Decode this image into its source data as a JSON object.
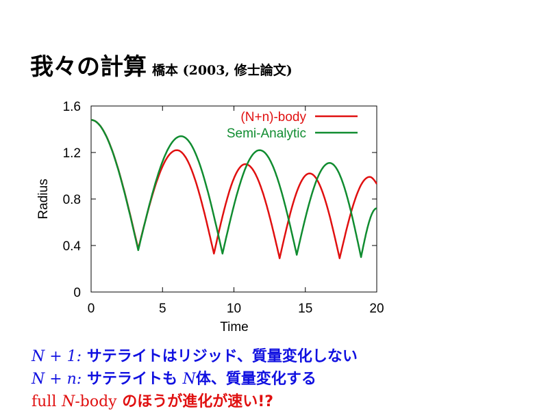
{
  "slide": {
    "title": "我々の計算",
    "subtitle": "橋本 (2003, 修士論文)"
  },
  "notes": [
    {
      "math": "N + 1:",
      "text": "サテライトはリジッド、質量変化しない",
      "color": "#1010e0"
    },
    {
      "math": "N + n:",
      "text": "サテライトも",
      "math2": "N",
      "text2": "体、質量変化する",
      "color": "#1010e0"
    },
    {
      "prefix": "full",
      "math": "N",
      "mid": "-body",
      "text": "のほうが進化が速い!?",
      "color": "#e01010"
    }
  ],
  "chart_data": {
    "type": "line",
    "xlabel": "Time",
    "ylabel": "Radius",
    "xlim": [
      0,
      20
    ],
    "ylim": [
      0,
      1.6
    ],
    "xticks": [
      0,
      5,
      10,
      15,
      20
    ],
    "xtick_labels": [
      "0",
      "5",
      "10",
      "15",
      "20"
    ],
    "yticks": [
      0,
      0.4,
      0.8,
      1.2,
      1.6
    ],
    "ytick_labels": [
      "0",
      "0.4",
      "0.8",
      "1.2",
      "1.6"
    ],
    "grid": false,
    "legend_position": "top-right",
    "series": [
      {
        "name": "(N+n)-body",
        "color": "#e01010",
        "extrema": [
          [
            0,
            1.48
          ],
          [
            3.3,
            0.37
          ],
          [
            6.0,
            1.22
          ],
          [
            8.6,
            0.33
          ],
          [
            10.8,
            1.1
          ],
          [
            13.2,
            0.29
          ],
          [
            15.3,
            1.02
          ],
          [
            17.4,
            0.29
          ],
          [
            19.5,
            0.99
          ],
          [
            20,
            0.93
          ]
        ]
      },
      {
        "name": "Semi-Analytic",
        "color": "#108c30",
        "extrema": [
          [
            0,
            1.48
          ],
          [
            3.3,
            0.36
          ],
          [
            6.3,
            1.34
          ],
          [
            9.2,
            0.33
          ],
          [
            11.8,
            1.22
          ],
          [
            14.4,
            0.32
          ],
          [
            16.7,
            1.11
          ],
          [
            18.9,
            0.3
          ],
          [
            20,
            0.72
          ]
        ]
      }
    ]
  }
}
